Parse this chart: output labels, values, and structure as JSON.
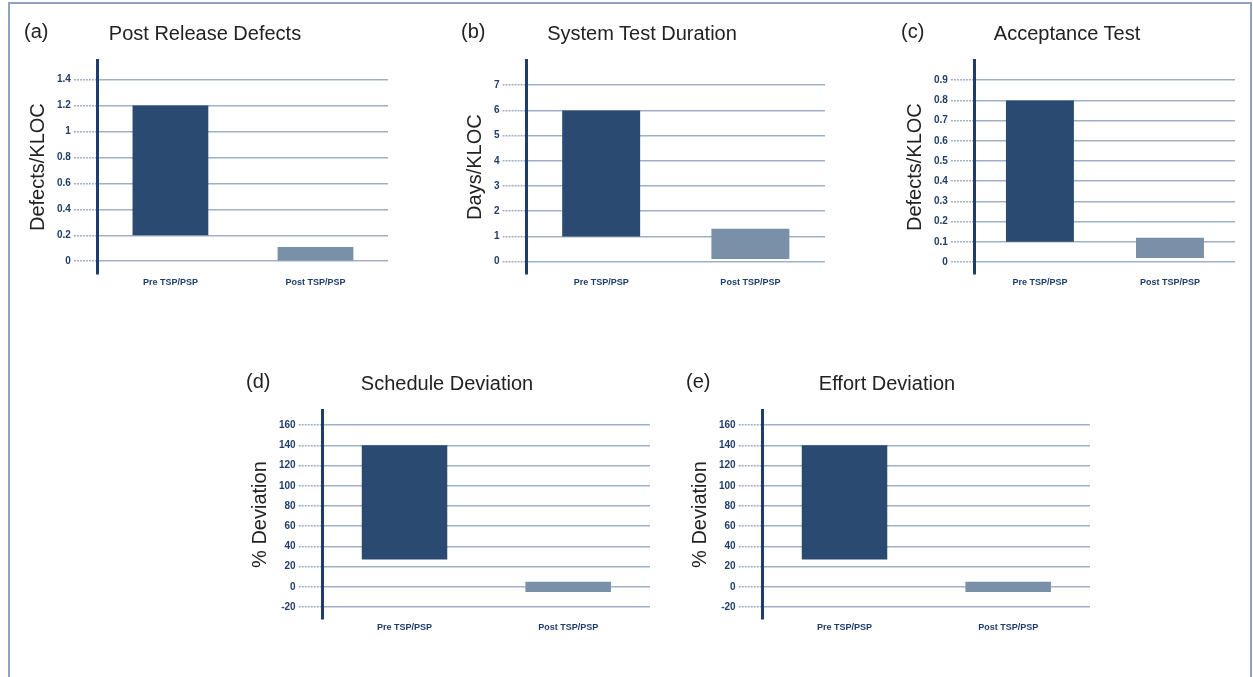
{
  "chart_data": [
    {
      "type": "bar",
      "title": "Post Release Defects",
      "annotations": [
        "(a)"
      ],
      "ylabel": "Defects/KLOC",
      "categories": [
        "Pre TSP/PSP",
        "Post TSP/PSP"
      ],
      "values": [
        1.0,
        0.11
      ],
      "base": [
        0.2,
        0
      ],
      "colors": [
        "#2a4a72",
        "#7a8fa8"
      ],
      "ylim": [
        -0.1,
        1.55
      ],
      "yticks": [
        0,
        0.2,
        0.4,
        0.6,
        0.8,
        1,
        1.2,
        1.4
      ],
      "grid": "y"
    },
    {
      "type": "bar",
      "title": "System Test Duration",
      "annotations": [
        "(b)"
      ],
      "ylabel": "Days/KLOC",
      "categories": [
        "Pre TSP/PSP",
        "Post TSP/PSP"
      ],
      "values": [
        5,
        1.2
      ],
      "base": [
        1,
        0.1
      ],
      "colors": [
        "#2a4a72",
        "#7a8fa8"
      ],
      "ylim": [
        -0.5,
        8
      ],
      "yticks": [
        0,
        1,
        2,
        3,
        4,
        5,
        6,
        7
      ],
      "grid": "y"
    },
    {
      "type": "bar",
      "title": "Acceptance Test",
      "annotations": [
        "(c)"
      ],
      "ylabel": "Defects/KLOC",
      "categories": [
        "Pre TSP/PSP",
        "Post TSP/PSP"
      ],
      "values": [
        0.7,
        0.1
      ],
      "base": [
        0.1,
        0.02
      ],
      "colors": [
        "#2a4a72",
        "#7a8fa8"
      ],
      "ylim": [
        -0.06,
        1.0
      ],
      "yticks": [
        0,
        0.1,
        0.2,
        0.3,
        0.4,
        0.5,
        0.6,
        0.7,
        0.8,
        0.9
      ],
      "grid": "y"
    },
    {
      "type": "bar",
      "title": "Schedule Deviation",
      "annotations": [
        "(d)"
      ],
      "ylabel": "% Deviation",
      "categories": [
        "Pre TSP/PSP",
        "Post TSP/PSP"
      ],
      "values": [
        113,
        10
      ],
      "base": [
        27,
        -5
      ],
      "colors": [
        "#2a4a72",
        "#7a8fa8"
      ],
      "ylim": [
        -32,
        175
      ],
      "yticks": [
        -20,
        0,
        20,
        40,
        60,
        80,
        100,
        120,
        140,
        160
      ],
      "grid": "y"
    },
    {
      "type": "bar",
      "title": "Effort Deviation",
      "annotations": [
        "(e)"
      ],
      "ylabel": "% Deviation",
      "categories": [
        "Pre TSP/PSP",
        "Post TSP/PSP"
      ],
      "values": [
        113,
        10
      ],
      "base": [
        27,
        -5
      ],
      "colors": [
        "#2a4a72",
        "#7a8fa8"
      ],
      "ylim": [
        -32,
        175
      ],
      "yticks": [
        -20,
        0,
        20,
        40,
        60,
        80,
        100,
        120,
        140,
        160
      ],
      "grid": "y"
    }
  ]
}
